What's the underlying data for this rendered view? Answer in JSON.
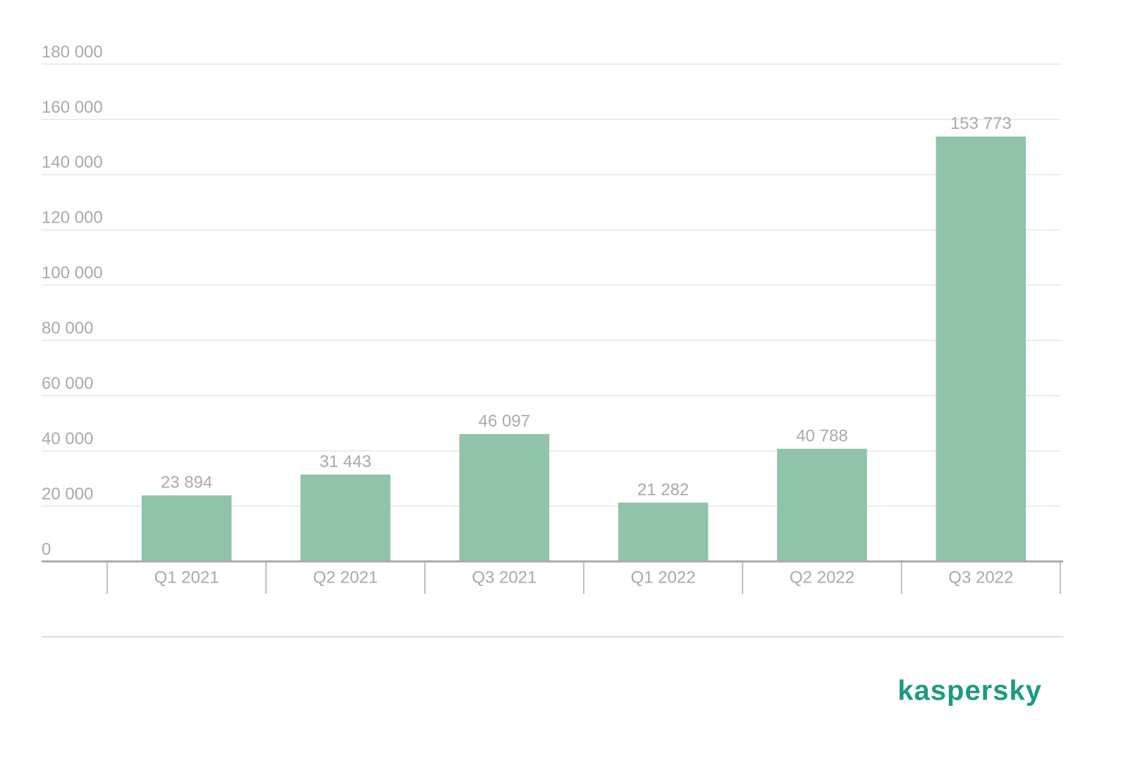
{
  "chart_data": {
    "type": "bar",
    "categories": [
      "Q1 2021",
      "Q2 2021",
      "Q3 2021",
      "Q1 2022",
      "Q2 2022",
      "Q3 2022"
    ],
    "values": [
      23894,
      31443,
      46097,
      21282,
      40788,
      153773
    ],
    "value_labels": [
      "23 894",
      "31 443",
      "46 097",
      "21 282",
      "40 788",
      "153 773"
    ],
    "color": "#90c3a8",
    "ylim": [
      0,
      180000
    ],
    "yticks": [
      0,
      {
        "value": 20000,
        "label": "20 000"
      },
      {
        "value": 40000,
        "label": "40 000"
      },
      {
        "value": 60000,
        "label": "60 000"
      },
      {
        "value": 80000,
        "label": "80 000"
      },
      {
        "value": 100000,
        "label": "100 000"
      },
      {
        "value": 120000,
        "label": "120 000"
      },
      {
        "value": 140000,
        "label": "140 000"
      },
      {
        "value": 160000,
        "label": "160 000"
      },
      {
        "value": 180000,
        "label": "180 000"
      }
    ],
    "grid": true
  },
  "brand": "kaspersky"
}
